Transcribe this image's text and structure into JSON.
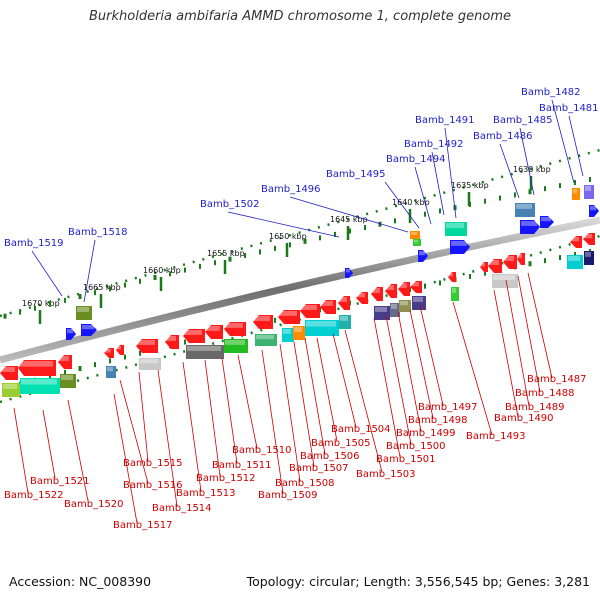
{
  "title": "Burkholderia ambifaria AMMD chromosome 1, complete genome",
  "footer": {
    "accession": "Accession: NC_008390",
    "topology": "Topology: circular; Length: 3,556,545 bp; Genes: 3,281"
  },
  "colors": {
    "backbone": "#8a8a8a",
    "forward_label": "#1e1ec8",
    "reverse_label": "#cc0000",
    "tick": "#1a7a1a"
  },
  "ticks": [
    "1630 kbp",
    "1635 kbp",
    "1640 kbp",
    "1645 kbp",
    "1650 kbp",
    "1655 kbp",
    "1660 kbp",
    "1665 kbp",
    "1670 kbp"
  ],
  "forward_genes": [
    "Bamb_1481",
    "Bamb_1482",
    "Bamb_1485",
    "Bamb_1486",
    "Bamb_1491",
    "Bamb_1492",
    "Bamb_1494",
    "Bamb_1495",
    "Bamb_1496",
    "Bamb_1502",
    "Bamb_1518",
    "Bamb_1519"
  ],
  "reverse_genes": [
    "Bamb_1487",
    "Bamb_1488",
    "Bamb_1489",
    "Bamb_1490",
    "Bamb_1493",
    "Bamb_1497",
    "Bamb_1498",
    "Bamb_1499",
    "Bamb_1500",
    "Bamb_1501",
    "Bamb_1503",
    "Bamb_1504",
    "Bamb_1505",
    "Bamb_1506",
    "Bamb_1507",
    "Bamb_1508",
    "Bamb_1509",
    "Bamb_1510",
    "Bamb_1511",
    "Bamb_1512",
    "Bamb_1513",
    "Bamb_1514",
    "Bamb_1515",
    "Bamb_1516",
    "Bamb_1517",
    "Bamb_1520",
    "Bamb_1521",
    "Bamb_1522"
  ]
}
